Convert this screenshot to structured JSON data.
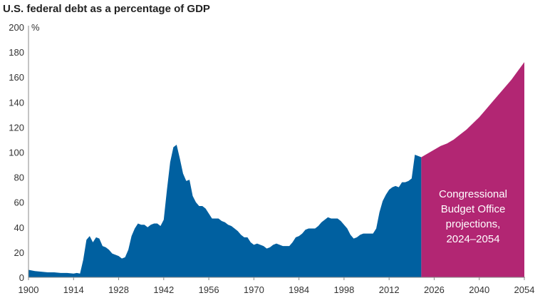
{
  "chart_data": {
    "type": "area",
    "title": "U.S. federal debt as a percentage of GDP",
    "ylabel": "%",
    "xlabel": "",
    "xlim": [
      1900,
      2054
    ],
    "ylim": [
      0,
      200
    ],
    "grid": false,
    "x_ticks": [
      "1900",
      "1914",
      "1928",
      "1942",
      "1956",
      "1970",
      "1984",
      "1998",
      "2012",
      "2026",
      "2040",
      "2054"
    ],
    "y_ticks": [
      "0",
      "20",
      "40",
      "60",
      "80",
      "100",
      "120",
      "140",
      "160",
      "180",
      "200"
    ],
    "colors": {
      "historical": "#0060a0",
      "projection": "#b22673"
    },
    "annotation": "Congressional Budget Office projections, 2024–2054",
    "annotation_lines": [
      "Congressional",
      "Budget Office",
      "projections,",
      "2024–2054"
    ],
    "series": [
      {
        "key": "historical",
        "x": [
          1900,
          1902,
          1904,
          1906,
          1908,
          1910,
          1912,
          1914,
          1915,
          1916,
          1917,
          1918,
          1919,
          1920,
          1921,
          1922,
          1923,
          1924,
          1925,
          1926,
          1927,
          1928,
          1929,
          1930,
          1931,
          1932,
          1933,
          1934,
          1935,
          1936,
          1937,
          1938,
          1939,
          1940,
          1941,
          1942,
          1943,
          1944,
          1945,
          1946,
          1947,
          1948,
          1949,
          1950,
          1951,
          1952,
          1953,
          1954,
          1955,
          1956,
          1957,
          1958,
          1959,
          1960,
          1961,
          1962,
          1963,
          1964,
          1965,
          1966,
          1967,
          1968,
          1969,
          1970,
          1971,
          1972,
          1973,
          1974,
          1975,
          1976,
          1977,
          1978,
          1979,
          1980,
          1981,
          1982,
          1983,
          1984,
          1985,
          1986,
          1987,
          1988,
          1989,
          1990,
          1991,
          1992,
          1993,
          1994,
          1995,
          1996,
          1997,
          1998,
          1999,
          2000,
          2001,
          2002,
          2003,
          2004,
          2005,
          2006,
          2007,
          2008,
          2009,
          2010,
          2011,
          2012,
          2013,
          2014,
          2015,
          2016,
          2017,
          2018,
          2019,
          2020,
          2021,
          2022
        ],
        "values": [
          6,
          5,
          4.5,
          4,
          4,
          3.5,
          3.5,
          3,
          3.5,
          3,
          14,
          30,
          33,
          28,
          32,
          31,
          25,
          24,
          22,
          19,
          18,
          17,
          15,
          16,
          22,
          33,
          39,
          43,
          42,
          42,
          40,
          42,
          43,
          43,
          41,
          46,
          70,
          92,
          104,
          106,
          95,
          83,
          77,
          78,
          65,
          60,
          57,
          57,
          55,
          51,
          47,
          47,
          47,
          45,
          44,
          42,
          41,
          39,
          37,
          34,
          32,
          32,
          28,
          26,
          27,
          26,
          25,
          23,
          24,
          26,
          27,
          26,
          25,
          25,
          25,
          28,
          32,
          33,
          35,
          38,
          39,
          39,
          39,
          41,
          44,
          46,
          48,
          47,
          47,
          47,
          45,
          42,
          39,
          34,
          31,
          32,
          34,
          35,
          35,
          35,
          35,
          39,
          52,
          61,
          66,
          70,
          72,
          73,
          72,
          76,
          76,
          77,
          79,
          98,
          97,
          96
        ]
      },
      {
        "key": "projection",
        "x": [
          2022,
          2024,
          2026,
          2028,
          2030,
          2032,
          2034,
          2036,
          2038,
          2040,
          2042,
          2044,
          2046,
          2048,
          2050,
          2052,
          2054
        ],
        "values": [
          96,
          99,
          102,
          105,
          107,
          110,
          114,
          118,
          123,
          128,
          134,
          140,
          146,
          152,
          158,
          165,
          172
        ]
      }
    ]
  }
}
